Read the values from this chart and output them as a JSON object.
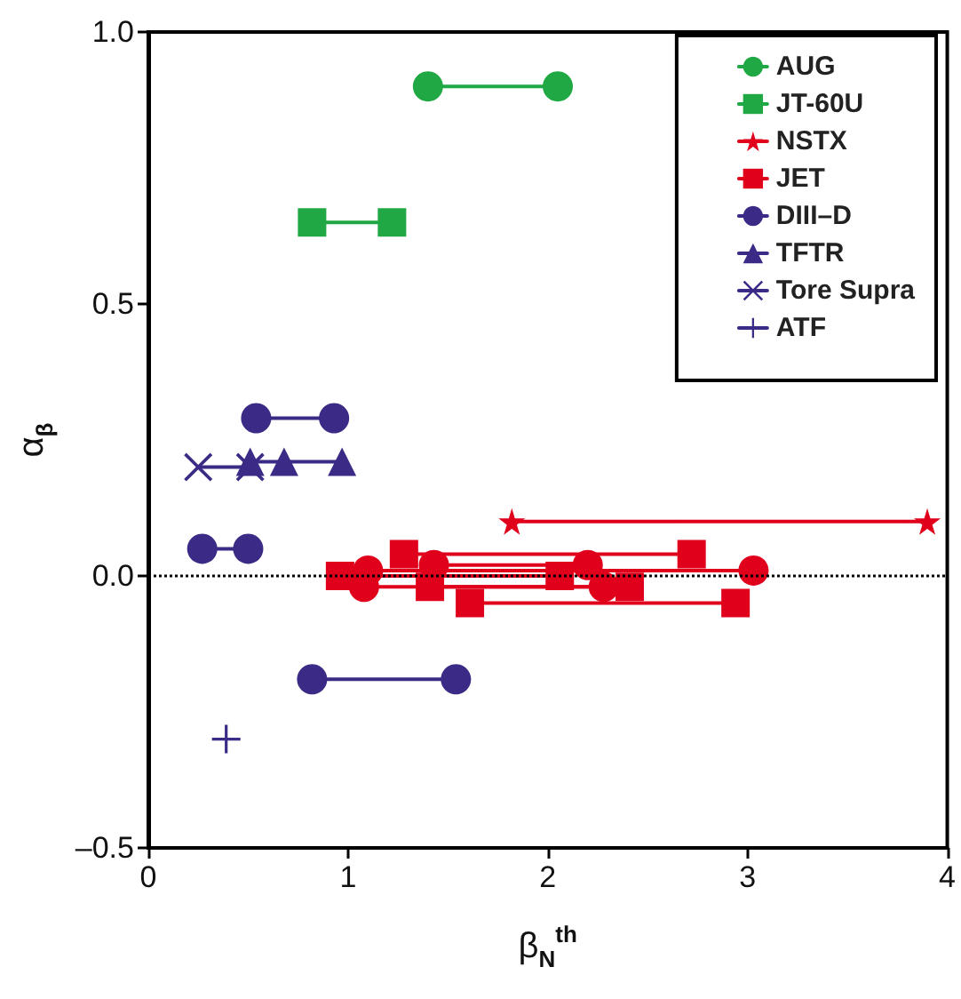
{
  "chart_data": {
    "type": "line",
    "xlabel": "β$_{N}$$^{th}$",
    "ylabel": "α$_{β}$",
    "xlim": [
      0,
      4
    ],
    "xticks": [
      0,
      1,
      2,
      3,
      4
    ],
    "ylim": [
      -0.5,
      1.0
    ],
    "yticks": [
      {
        "value": -0.5,
        "label": "–0.5"
      },
      {
        "value": 0,
        "label": "0.0"
      },
      {
        "value": 0.5,
        "label": "0.5"
      },
      {
        "value": 1.0,
        "label": "1.0"
      }
    ],
    "legend": "top right",
    "grid": false,
    "ref_lines": [
      {
        "axis": "y",
        "value": 0,
        "color": "#000000",
        "line_style": "dotted"
      }
    ],
    "series": [
      {
        "name": "AUG",
        "color": "#1fa843",
        "marker": "circle",
        "x": [
          1.4,
          2.05
        ],
        "values": [
          0.9,
          0.9
        ]
      },
      {
        "name": "JT-60U",
        "color": "#1fa843",
        "marker": "square",
        "x": [
          0.82,
          1.22
        ],
        "values": [
          0.65,
          0.65
        ]
      },
      {
        "name": "NSTX",
        "color": "#e0001b",
        "marker": "star",
        "x": [
          1.82,
          3.9
        ],
        "values": [
          0.1,
          0.1
        ]
      },
      {
        "name": "JET",
        "color": "#e0001b",
        "marker": "square",
        "x": [
          1.28,
          2.72,
          null,
          0.96,
          2.06,
          null,
          1.41,
          2.41,
          null,
          1.61,
          2.94
        ],
        "values": [
          0.04,
          0.04,
          null,
          0.0,
          0.0,
          null,
          -0.02,
          -0.02,
          null,
          -0.05,
          -0.05
        ]
      },
      {
        "color": "#e0001b",
        "marker": "circle",
        "x": [
          1.1,
          3.03,
          null,
          1.08,
          2.28,
          null,
          1.43,
          2.2
        ],
        "values": [
          0.01,
          0.01,
          null,
          -0.02,
          -0.02,
          null,
          0.02,
          0.02
        ]
      },
      {
        "name": "DIII–D",
        "color": "#3b2a86",
        "marker": "circle",
        "x": [
          0.54,
          0.93,
          null,
          0.27,
          0.5,
          null,
          0.82,
          1.54
        ],
        "values": [
          0.29,
          0.29,
          null,
          0.05,
          0.05,
          null,
          -0.19,
          -0.19
        ]
      },
      {
        "name": "TFTR",
        "color": "#3b2a86",
        "marker": "triangle",
        "x": [
          0.51,
          0.68,
          0.97
        ],
        "values": [
          0.21,
          0.21,
          0.21
        ]
      },
      {
        "name": "Tore Supra",
        "color": "#3b2a86",
        "marker": "cross",
        "x": [
          0.25,
          0.51
        ],
        "values": [
          0.2,
          0.2
        ]
      },
      {
        "name": "ATF",
        "color": "#3b2a86",
        "marker": "plus",
        "x": [
          0.39
        ],
        "values": [
          -0.3
        ]
      }
    ]
  }
}
